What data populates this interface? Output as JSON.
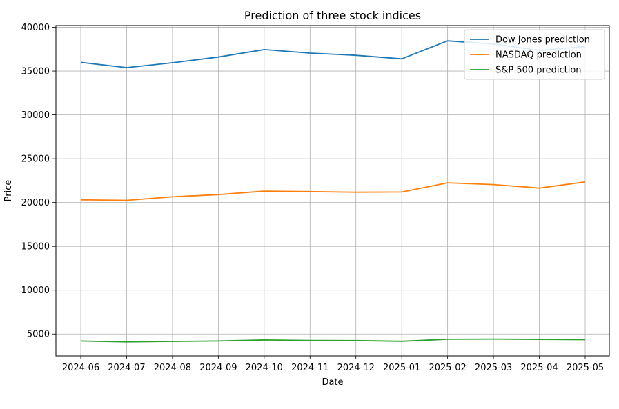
{
  "chart_data": {
    "type": "line",
    "title": "Prediction of three stock indices",
    "xlabel": "Date",
    "ylabel": "Price",
    "x": [
      "2024-06",
      "2024-07",
      "2024-08",
      "2024-09",
      "2024-10",
      "2024-11",
      "2024-12",
      "2025-01",
      "2025-02",
      "2025-03",
      "2025-04",
      "2025-05"
    ],
    "ylim": [
      2500,
      40200
    ],
    "yticks": [
      5000,
      10000,
      15000,
      20000,
      25000,
      30000,
      35000,
      40000
    ],
    "grid": true,
    "legend": "top-right",
    "series": [
      {
        "name": "Dow Jones prediction",
        "color": "#1f77b4",
        "values": [
          36000,
          35400,
          35950,
          36600,
          37450,
          37050,
          36800,
          36400,
          38450,
          38100,
          37350,
          37800
        ]
      },
      {
        "name": "NASDAQ prediction",
        "color": "#ff7f0e",
        "values": [
          20300,
          20250,
          20650,
          20900,
          21300,
          21250,
          21180,
          21200,
          22250,
          22050,
          21650,
          22350
        ]
      },
      {
        "name": "S&P 500 prediction",
        "color": "#2ca02c",
        "values": [
          4200,
          4100,
          4150,
          4200,
          4320,
          4260,
          4250,
          4170,
          4400,
          4420,
          4380,
          4350
        ]
      }
    ]
  }
}
